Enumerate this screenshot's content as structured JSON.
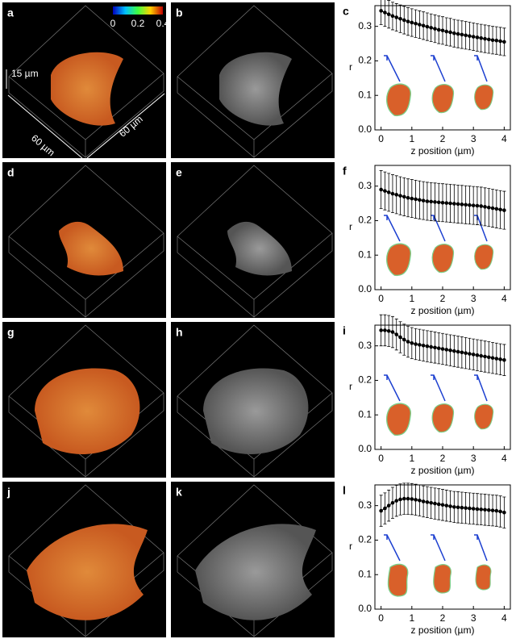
{
  "image_panels": [
    {
      "label": "a"
    },
    {
      "label": "b"
    },
    {
      "label": "d"
    },
    {
      "label": "e"
    },
    {
      "label": "g"
    },
    {
      "label": "h"
    },
    {
      "label": "j"
    },
    {
      "label": "k"
    }
  ],
  "colorbar": {
    "lim": [
      0,
      0.4
    ],
    "ticks": [
      0,
      0.2,
      0.4
    ]
  },
  "scale_labels": {
    "height": "15 µm",
    "width": "60 µm",
    "depth": "60 µm"
  },
  "chart_data": [
    {
      "type": "line",
      "panel_label": "c",
      "x_label": "z position (µm)",
      "y_label": "r",
      "color": "#000000",
      "x": [
        0,
        0.125,
        0.25,
        0.375,
        0.5,
        0.625,
        0.75,
        0.875,
        1,
        1.125,
        1.25,
        1.375,
        1.5,
        1.625,
        1.75,
        1.875,
        2,
        2.125,
        2.25,
        2.375,
        2.5,
        2.625,
        2.75,
        2.875,
        3,
        3.125,
        3.25,
        3.375,
        3.5,
        3.625,
        3.75,
        3.875,
        4
      ],
      "values": [
        0.345,
        0.34,
        0.335,
        0.33,
        0.326,
        0.322,
        0.318,
        0.314,
        0.311,
        0.308,
        0.305,
        0.302,
        0.299,
        0.296,
        0.293,
        0.29,
        0.288,
        0.285,
        0.283,
        0.28,
        0.278,
        0.276,
        0.274,
        0.272,
        0.27,
        0.268,
        0.266,
        0.264,
        0.262,
        0.26,
        0.259,
        0.257,
        0.255
      ],
      "error": 0.04,
      "xlim": [
        -0.2,
        4.2
      ],
      "ylim": [
        0,
        0.36
      ],
      "xticks": [
        0,
        1,
        2,
        3,
        4
      ],
      "yticks": [
        {
          "value": 0,
          "label": "0.0"
        },
        {
          "value": 0.1,
          "label": "0.1"
        },
        {
          "value": 0.2,
          "label": "0.2"
        },
        {
          "value": 0.3,
          "label": "0.3"
        }
      ]
    },
    {
      "type": "line",
      "panel_label": "f",
      "x_label": "z position (µm)",
      "y_label": "r",
      "color": "#000000",
      "x": [
        0,
        0.125,
        0.25,
        0.375,
        0.5,
        0.625,
        0.75,
        0.875,
        1,
        1.125,
        1.25,
        1.375,
        1.5,
        1.625,
        1.75,
        1.875,
        2,
        2.125,
        2.25,
        2.375,
        2.5,
        2.625,
        2.75,
        2.875,
        3,
        3.125,
        3.25,
        3.375,
        3.5,
        3.625,
        3.75,
        3.875,
        4
      ],
      "values": [
        0.29,
        0.286,
        0.282,
        0.278,
        0.275,
        0.272,
        0.269,
        0.266,
        0.264,
        0.262,
        0.26,
        0.258,
        0.256,
        0.255,
        0.254,
        0.253,
        0.252,
        0.251,
        0.25,
        0.249,
        0.248,
        0.247,
        0.246,
        0.245,
        0.244,
        0.243,
        0.242,
        0.24,
        0.238,
        0.236,
        0.234,
        0.232,
        0.23
      ],
      "error": 0.055,
      "xlim": [
        -0.2,
        4.2
      ],
      "ylim": [
        0,
        0.36
      ],
      "xticks": [
        0,
        1,
        2,
        3,
        4
      ],
      "yticks": [
        {
          "value": 0,
          "label": "0.0"
        },
        {
          "value": 0.1,
          "label": "0.1"
        },
        {
          "value": 0.2,
          "label": "0.2"
        },
        {
          "value": 0.3,
          "label": "0.3"
        }
      ]
    },
    {
      "type": "line",
      "panel_label": "i",
      "x_label": "z position (µm)",
      "y_label": "r",
      "color": "#000000",
      "x": [
        0,
        0.125,
        0.25,
        0.375,
        0.5,
        0.625,
        0.75,
        0.875,
        1,
        1.125,
        1.25,
        1.375,
        1.5,
        1.625,
        1.75,
        1.875,
        2,
        2.125,
        2.25,
        2.375,
        2.5,
        2.625,
        2.75,
        2.875,
        3,
        3.125,
        3.25,
        3.375,
        3.5,
        3.625,
        3.75,
        3.875,
        4
      ],
      "values": [
        0.345,
        0.345,
        0.343,
        0.34,
        0.333,
        0.325,
        0.318,
        0.312,
        0.308,
        0.305,
        0.303,
        0.301,
        0.299,
        0.297,
        0.295,
        0.293,
        0.291,
        0.289,
        0.287,
        0.285,
        0.283,
        0.281,
        0.279,
        0.277,
        0.275,
        0.273,
        0.271,
        0.269,
        0.267,
        0.265,
        0.263,
        0.261,
        0.259
      ],
      "error": 0.045,
      "xlim": [
        -0.2,
        4.2
      ],
      "ylim": [
        0,
        0.36
      ],
      "xticks": [
        0,
        1,
        2,
        3,
        4
      ],
      "yticks": [
        {
          "value": 0,
          "label": "0.0"
        },
        {
          "value": 0.1,
          "label": "0.1"
        },
        {
          "value": 0.2,
          "label": "0.2"
        },
        {
          "value": 0.3,
          "label": "0.3"
        }
      ]
    },
    {
      "type": "line",
      "panel_label": "l",
      "x_label": "z position (µm)",
      "y_label": "r",
      "color": "#000000",
      "x": [
        0,
        0.125,
        0.25,
        0.375,
        0.5,
        0.625,
        0.75,
        0.875,
        1,
        1.125,
        1.25,
        1.375,
        1.5,
        1.625,
        1.75,
        1.875,
        2,
        2.125,
        2.25,
        2.375,
        2.5,
        2.625,
        2.75,
        2.875,
        3,
        3.125,
        3.25,
        3.375,
        3.5,
        3.625,
        3.75,
        3.875,
        4
      ],
      "values": [
        0.285,
        0.292,
        0.3,
        0.308,
        0.314,
        0.318,
        0.32,
        0.32,
        0.319,
        0.317,
        0.315,
        0.312,
        0.31,
        0.308,
        0.306,
        0.304,
        0.302,
        0.3,
        0.298,
        0.296,
        0.295,
        0.294,
        0.293,
        0.292,
        0.291,
        0.29,
        0.289,
        0.288,
        0.287,
        0.286,
        0.285,
        0.283,
        0.28
      ],
      "error": 0.045,
      "xlim": [
        -0.2,
        4.2
      ],
      "ylim": [
        0,
        0.36
      ],
      "xticks": [
        0,
        1,
        2,
        3,
        4
      ],
      "yticks": [
        {
          "value": 0,
          "label": "0.0"
        },
        {
          "value": 0.1,
          "label": "0.1"
        },
        {
          "value": 0.2,
          "label": "0.2"
        },
        {
          "value": 0.3,
          "label": "0.3"
        }
      ]
    }
  ]
}
